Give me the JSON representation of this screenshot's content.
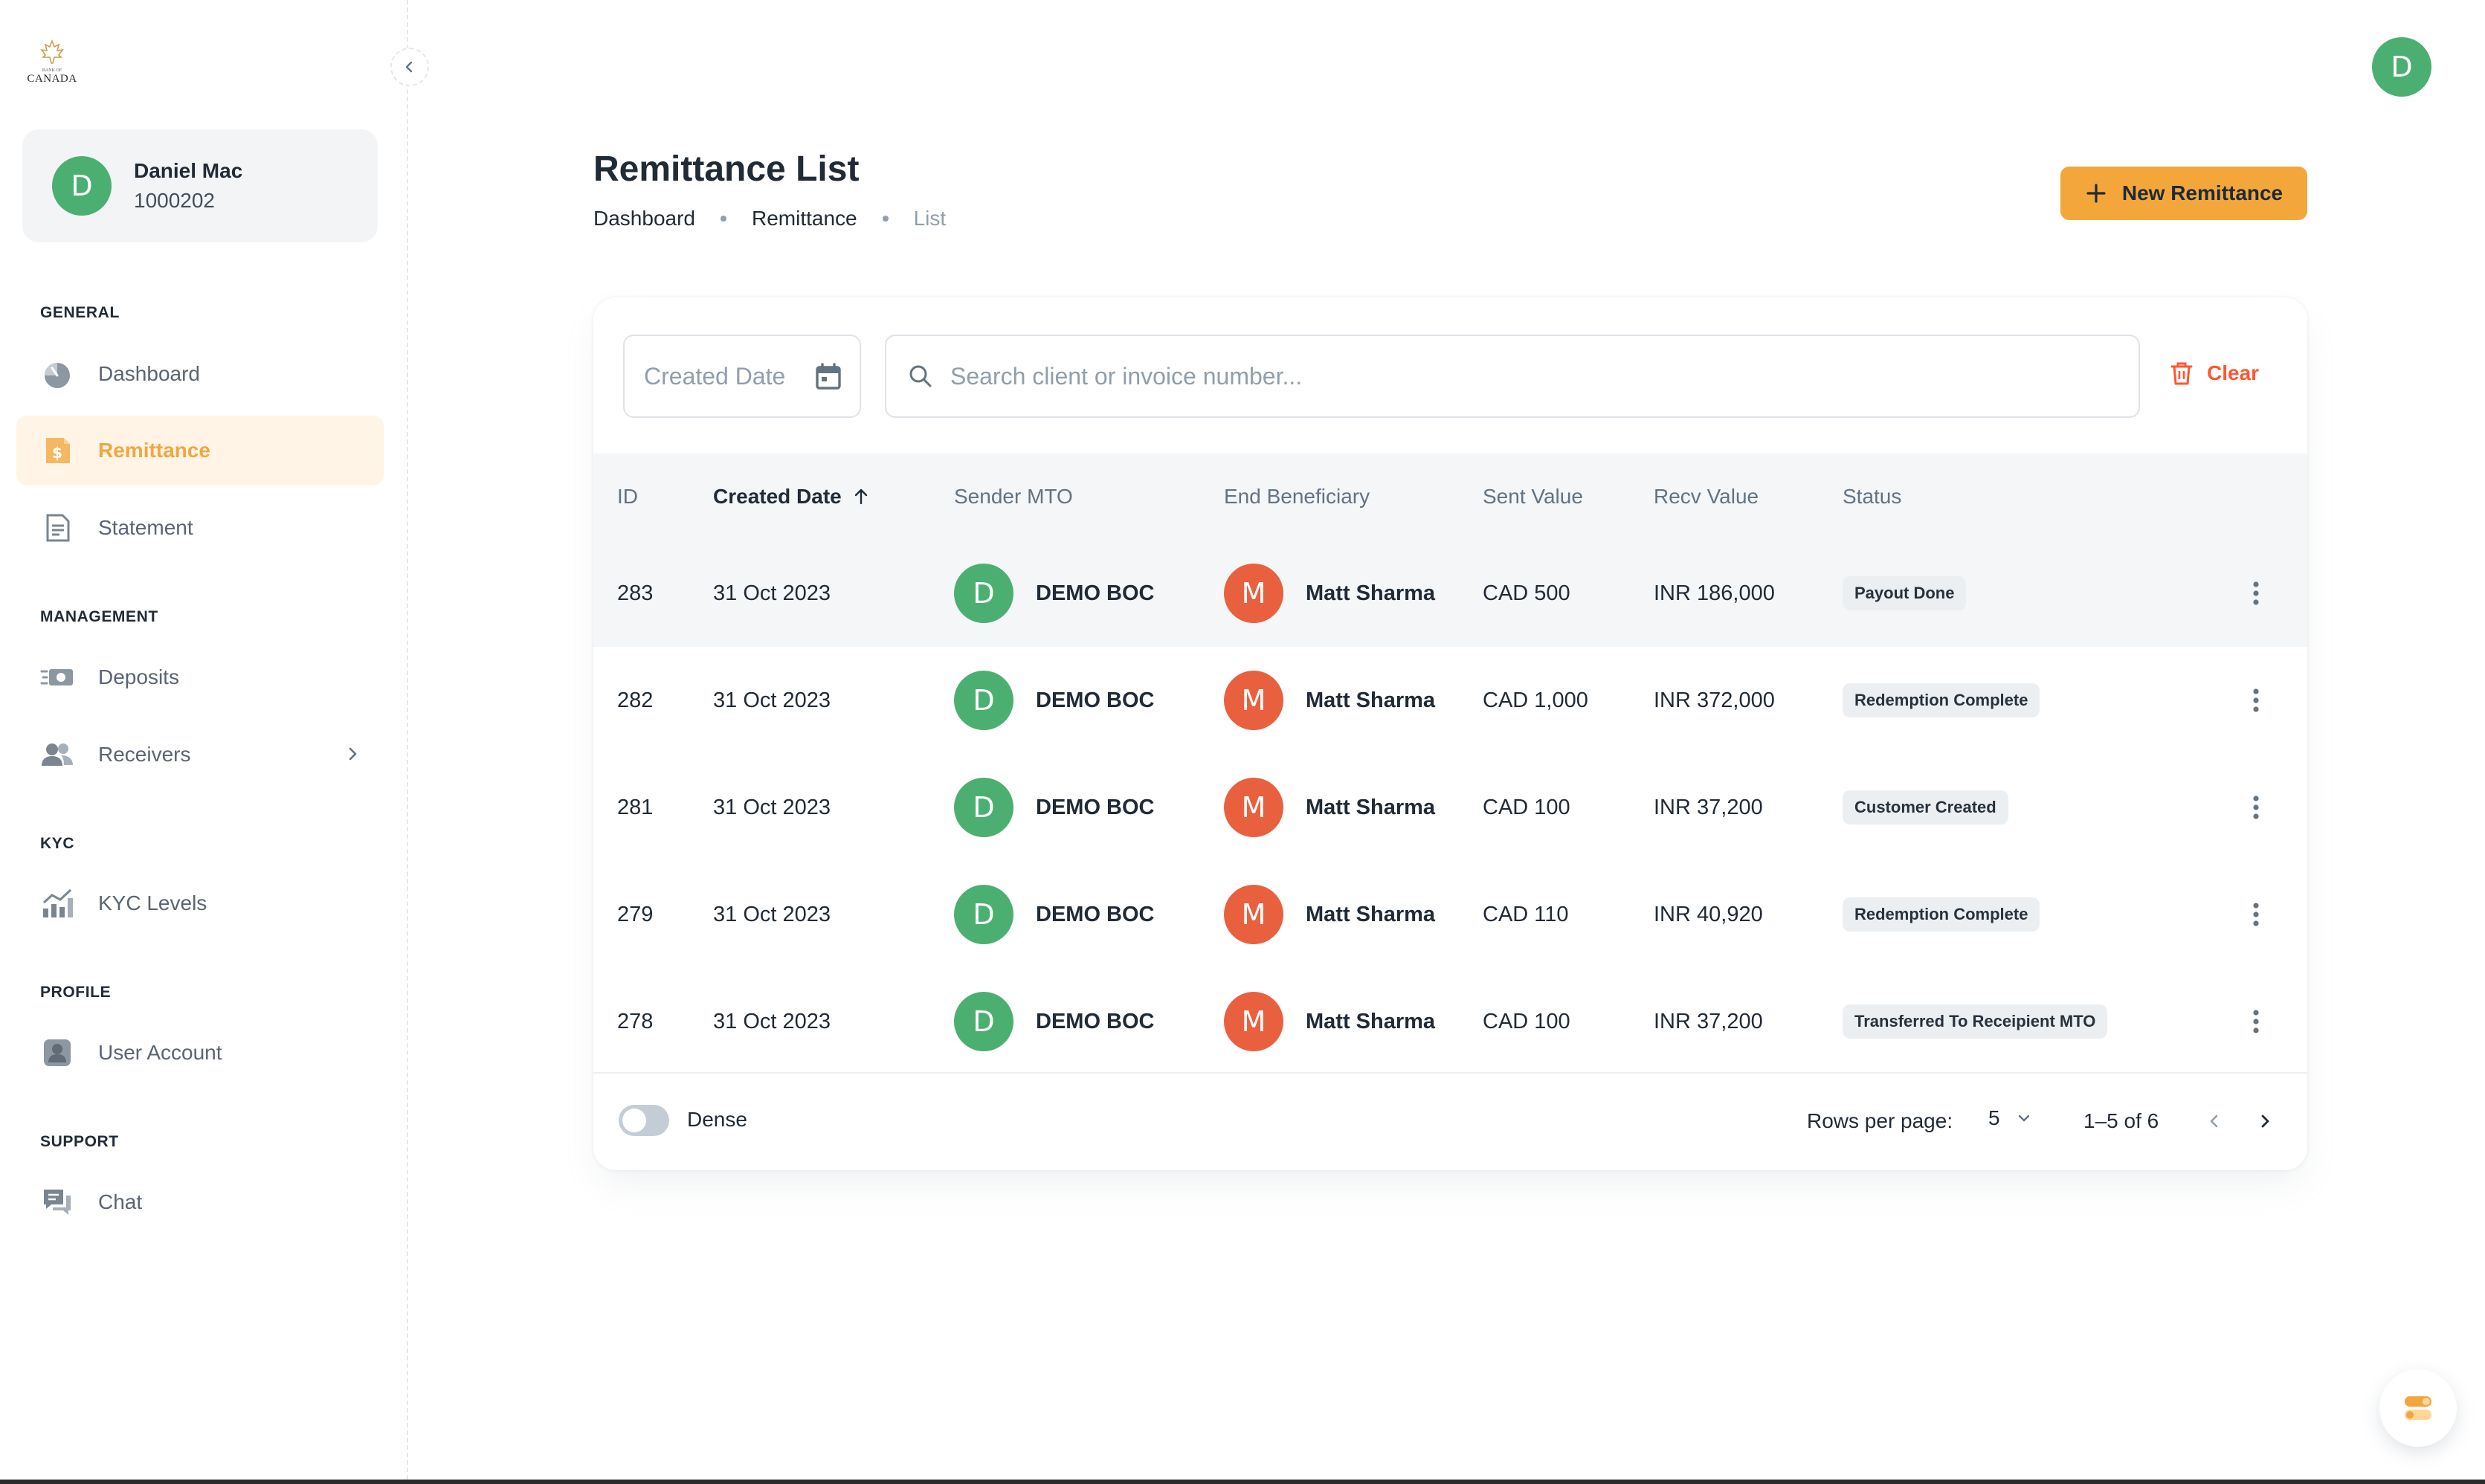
{
  "brand": {
    "logo_text": "CANADA",
    "logo_small": "BANK OF"
  },
  "user": {
    "initial": "D",
    "name": "Daniel Mac",
    "id": "1000202"
  },
  "nav": {
    "general": "GENERAL",
    "dashboard": "Dashboard",
    "remittance": "Remittance",
    "statement": "Statement",
    "management": "MANAGEMENT",
    "deposits": "Deposits",
    "receivers": "Receivers",
    "kyc": "KYC",
    "kyc_levels": "KYC Levels",
    "profile": "PROFILE",
    "user_account": "User Account",
    "support": "SUPPORT",
    "chat": "Chat"
  },
  "header": {
    "title": "Remittance List",
    "breadcrumb": [
      "Dashboard",
      "Remittance",
      "List"
    ],
    "new_button": "New Remittance",
    "account_initial": "D"
  },
  "filters": {
    "date_placeholder": "Created Date",
    "search_placeholder": "Search client or invoice number...",
    "clear": "Clear"
  },
  "table": {
    "columns": [
      "ID",
      "Created Date",
      "Sender MTO",
      "End Beneficiary",
      "Sent Value",
      "Recv Value",
      "Status"
    ],
    "rows": [
      {
        "id": "283",
        "date": "31 Oct 2023",
        "sender_initial": "D",
        "sender": "DEMO BOC",
        "beneficiary_initial": "M",
        "beneficiary": "Matt Sharma",
        "sent": "CAD 500",
        "recv": "INR 186,000",
        "status": "Payout Done"
      },
      {
        "id": "282",
        "date": "31 Oct 2023",
        "sender_initial": "D",
        "sender": "DEMO BOC",
        "beneficiary_initial": "M",
        "beneficiary": "Matt Sharma",
        "sent": "CAD 1,000",
        "recv": "INR 372,000",
        "status": "Redemption Complete"
      },
      {
        "id": "281",
        "date": "31 Oct 2023",
        "sender_initial": "D",
        "sender": "DEMO BOC",
        "beneficiary_initial": "M",
        "beneficiary": "Matt Sharma",
        "sent": "CAD 100",
        "recv": "INR 37,200",
        "status": "Customer Created"
      },
      {
        "id": "279",
        "date": "31 Oct 2023",
        "sender_initial": "D",
        "sender": "DEMO BOC",
        "beneficiary_initial": "M",
        "beneficiary": "Matt Sharma",
        "sent": "CAD 110",
        "recv": "INR 40,920",
        "status": "Redemption Complete"
      },
      {
        "id": "278",
        "date": "31 Oct 2023",
        "sender_initial": "D",
        "sender": "DEMO BOC",
        "beneficiary_initial": "M",
        "beneficiary": "Matt Sharma",
        "sent": "CAD 100",
        "recv": "INR 37,200",
        "status": "Transferred To Receipient MTO"
      }
    ]
  },
  "footer": {
    "dense_label": "Dense",
    "rows_per_page_label": "Rows per page:",
    "rows_per_page": "5",
    "range": "1–5 of 6"
  },
  "colors": {
    "accent": "#f3a73b",
    "active_nav_bg": "#fff4e6",
    "avatar_green": "#4caf72",
    "avatar_red": "#e9603f",
    "clear_red": "#ff5630"
  }
}
